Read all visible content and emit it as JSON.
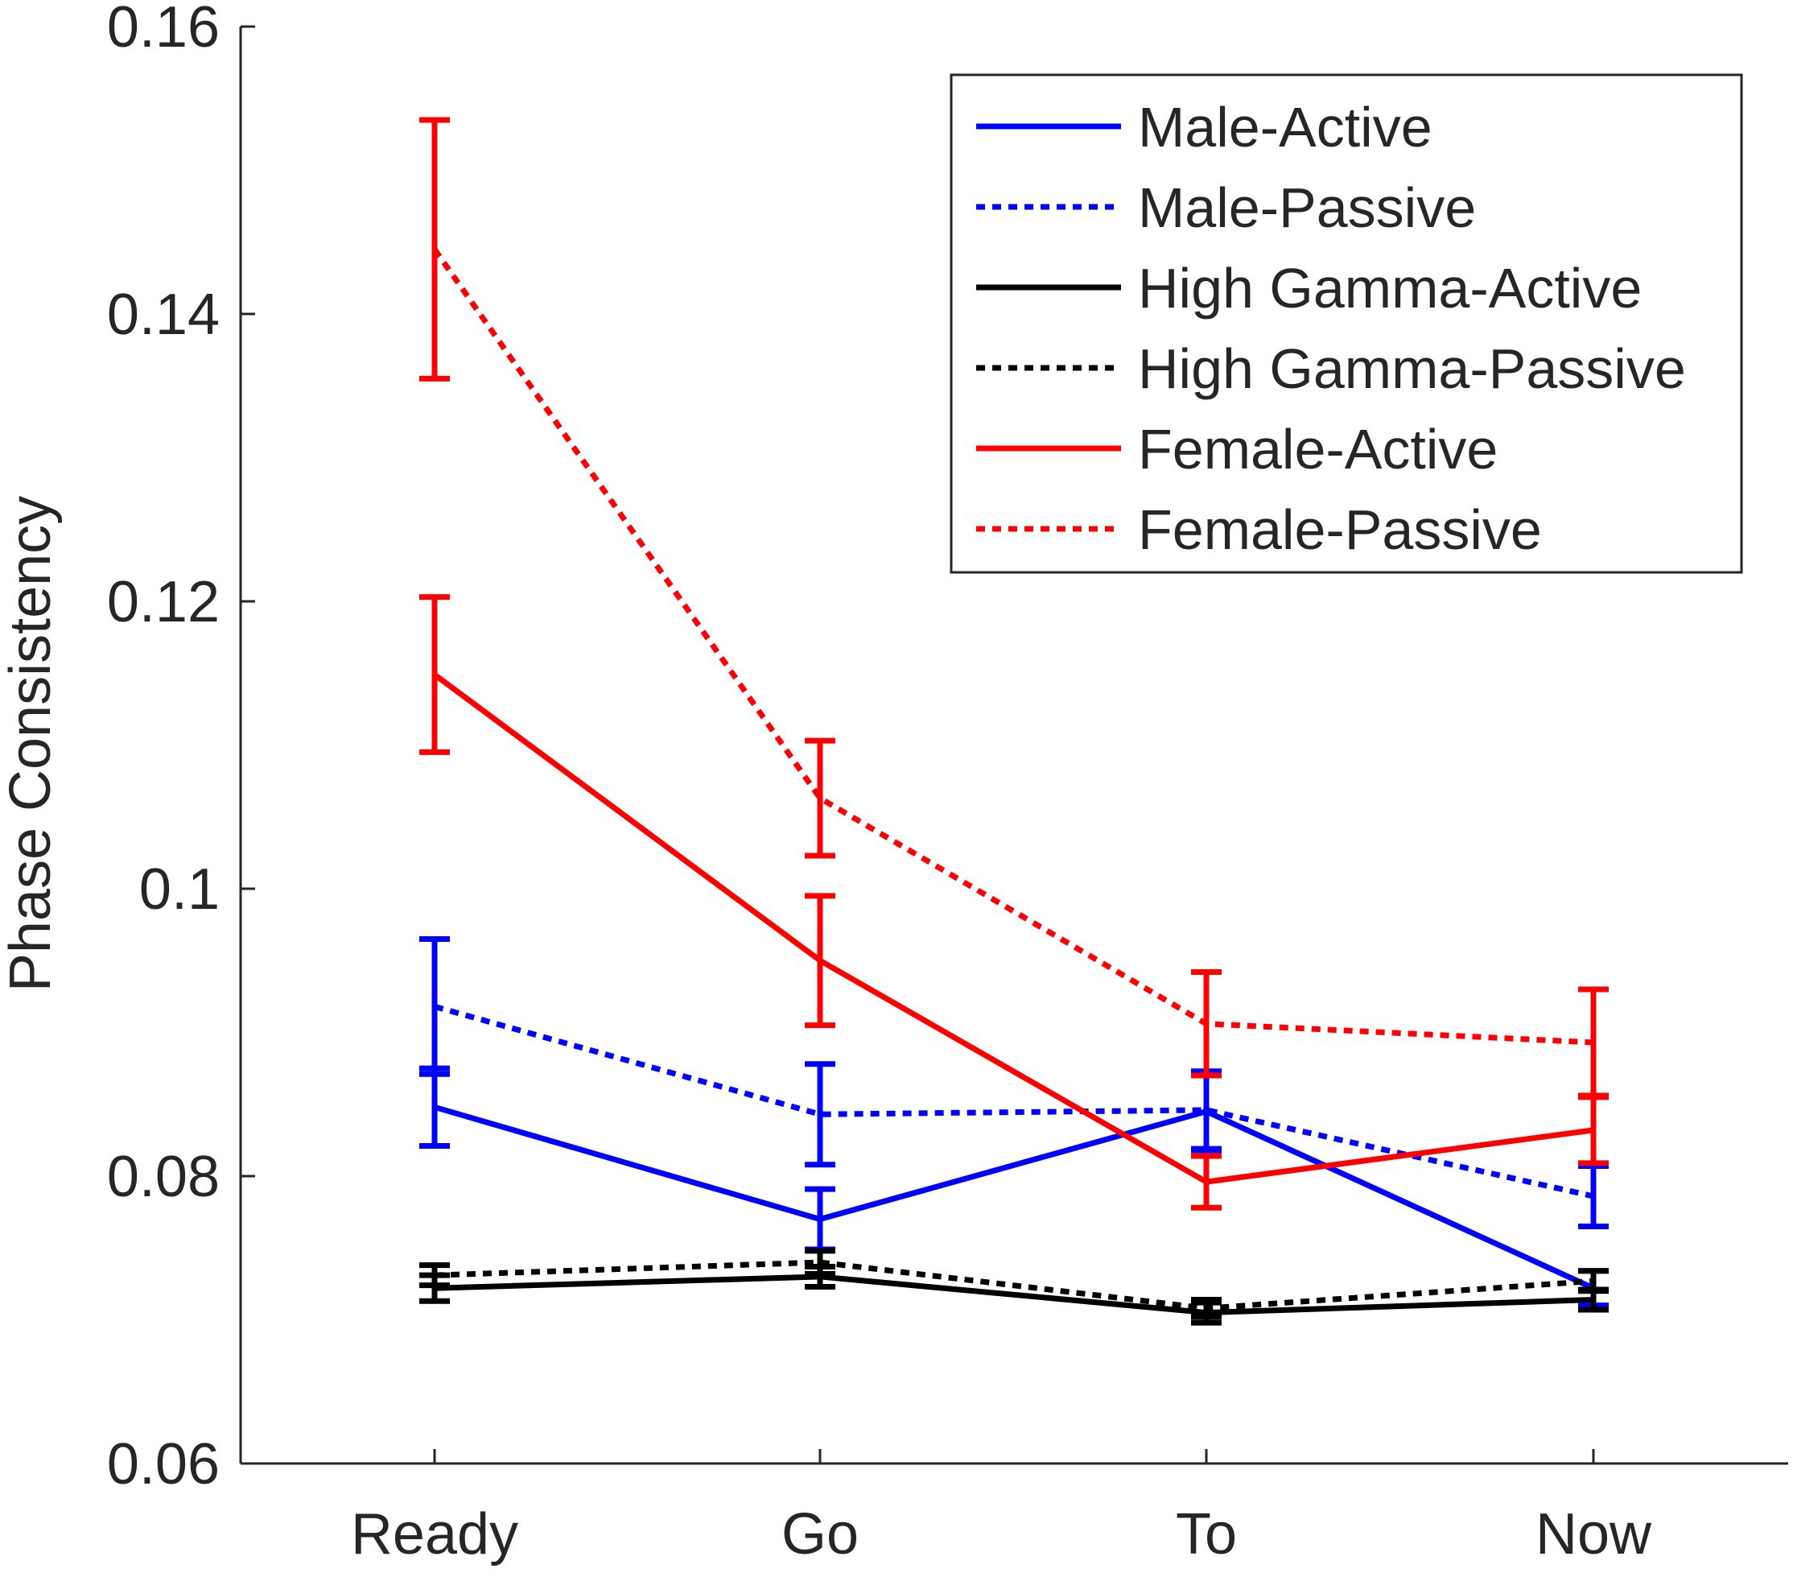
{
  "chart_data": {
    "type": "line",
    "title": "",
    "xlabel": "",
    "ylabel": "Phase Consistency",
    "categories": [
      "Ready",
      "Go",
      "To",
      "Now"
    ],
    "ylim": [
      0.06,
      0.16
    ],
    "yticks": [
      0.06,
      0.08,
      0.1,
      0.12,
      0.14,
      0.16
    ],
    "ytick_labels": [
      "0.06",
      "0.08",
      "0.1",
      "0.12",
      "0.14",
      "0.16"
    ],
    "grid": false,
    "legend_position": "top-right",
    "series": [
      {
        "name": "Male-Active",
        "color": "#0000ff",
        "dash": "solid",
        "values": [
          0.0848,
          0.077,
          0.0845,
          0.0722
        ],
        "errors": [
          0.0027,
          0.0021,
          0.0027,
          0.0012
        ]
      },
      {
        "name": "Male-Passive",
        "color": "#0000ff",
        "dash": "dotted",
        "values": [
          0.0918,
          0.0843,
          0.0846,
          0.0786
        ],
        "errors": [
          0.0047,
          0.0035,
          0.0027,
          0.0021
        ]
      },
      {
        "name": "High Gamma-Active",
        "color": "#000000",
        "dash": "solid",
        "values": [
          0.0722,
          0.073,
          0.0705,
          0.0714
        ],
        "errors": [
          0.0009,
          0.0007,
          0.0007,
          0.0007
        ]
      },
      {
        "name": "High Gamma-Passive",
        "color": "#000000",
        "dash": "dotted",
        "values": [
          0.0731,
          0.074,
          0.0708,
          0.0727
        ],
        "errors": [
          0.0007,
          0.0008,
          0.0006,
          0.0007
        ]
      },
      {
        "name": "Female-Active",
        "color": "#ff0000",
        "dash": "solid",
        "values": [
          0.1149,
          0.095,
          0.0796,
          0.0832
        ],
        "errors": [
          0.0054,
          0.0045,
          0.0018,
          0.0023
        ]
      },
      {
        "name": "Female-Passive",
        "color": "#ff0000",
        "dash": "dotted",
        "values": [
          0.1445,
          0.1063,
          0.0906,
          0.0893
        ],
        "errors": [
          0.009,
          0.004,
          0.0036,
          0.0037
        ]
      }
    ]
  }
}
